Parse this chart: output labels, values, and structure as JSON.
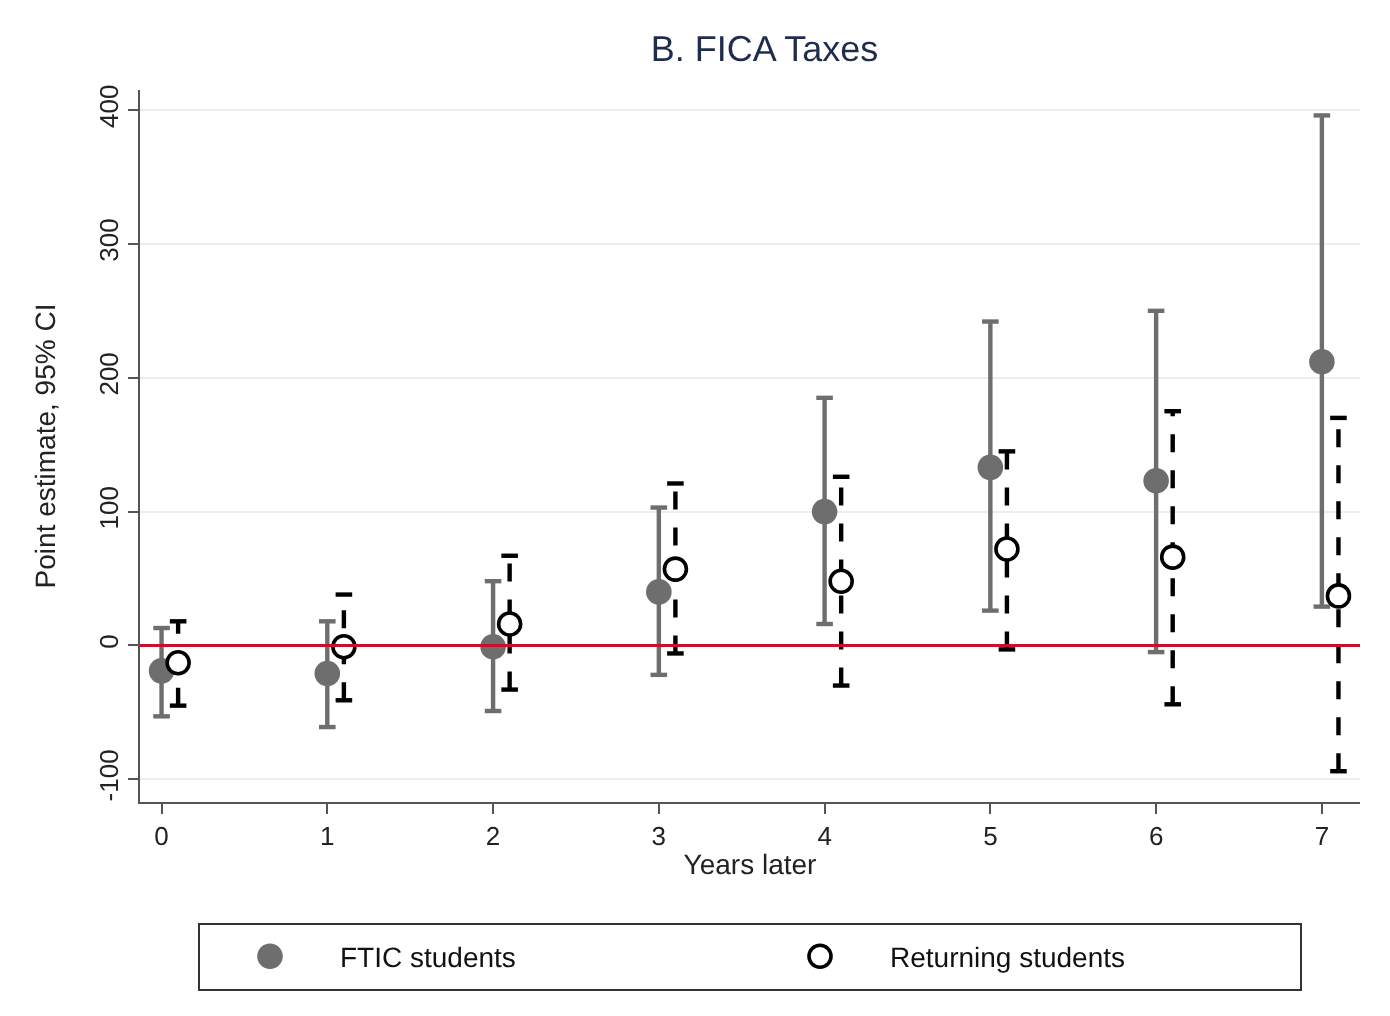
{
  "chart_data": {
    "type": "scatter",
    "title": "B. FICA Taxes",
    "xlabel": "Years later",
    "ylabel": "Point estimate, 95% CI",
    "series": [
      {
        "name": "FTIC students",
        "color": "#6e6e6e",
        "marker": "circle",
        "line_style": "solid",
        "x": [
          0,
          1,
          2,
          3,
          4,
          5,
          6,
          7
        ],
        "values": [
          -19,
          -21,
          -1,
          40,
          100,
          133,
          123,
          212
        ],
        "errors": [
          [
            -53,
            13
          ],
          [
            -61,
            18
          ],
          [
            -49,
            48
          ],
          [
            -22,
            103
          ],
          [
            16,
            185
          ],
          [
            26,
            242
          ],
          [
            -5,
            250
          ],
          [
            29,
            396
          ]
        ]
      },
      {
        "name": "Returning students",
        "color": "#000000",
        "marker": "circle",
        "line_style": "dashed",
        "x": [
          0.1,
          1.1,
          2.1,
          3.1,
          4.1,
          5.1,
          6.1,
          7.1
        ],
        "values": [
          -13,
          -1,
          16,
          57,
          48,
          72,
          66,
          37
        ],
        "errors": [
          [
            -45,
            18
          ],
          [
            -41,
            38
          ],
          [
            -33,
            67
          ],
          [
            -6,
            121
          ],
          [
            -30,
            126
          ],
          [
            -3,
            145
          ],
          [
            -44,
            175
          ],
          [
            -94,
            170
          ]
        ]
      }
    ],
    "xlim": [
      -0.13,
      7.23
    ],
    "xticks": [
      0,
      1,
      2,
      3,
      4,
      5,
      6,
      7
    ],
    "ylim": [
      -117,
      415
    ],
    "yticks": [
      -100,
      0,
      100,
      200,
      300,
      400
    ],
    "ref_lines": [
      {
        "axis": "y",
        "value": 0,
        "color": "#c8102e"
      }
    ],
    "grid": "y",
    "legend": "bottom"
  }
}
